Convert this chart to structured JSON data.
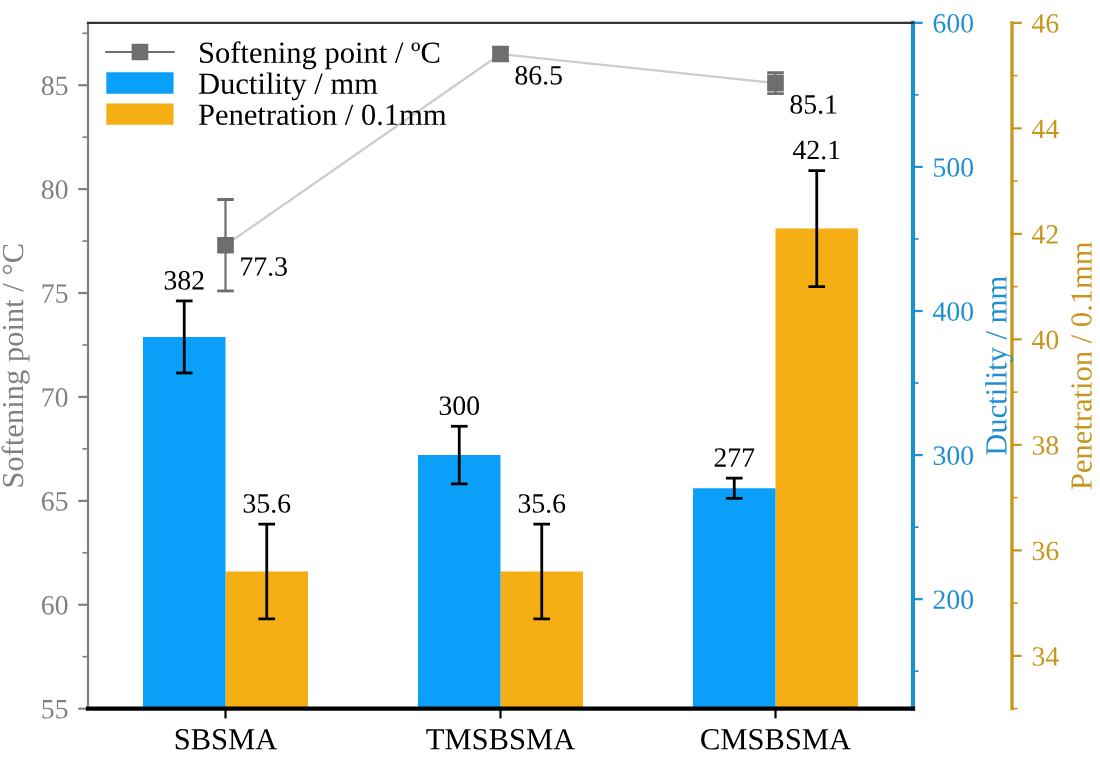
{
  "chart_data": {
    "type": "bar",
    "categories": [
      "SBSMA",
      "TMSBSMA",
      "CMSBSMA"
    ],
    "series": [
      {
        "name": "Softening point / ºC",
        "type": "line",
        "axis": "y",
        "color": "#6e6e6e",
        "values": [
          77.3,
          86.5,
          85.1
        ],
        "errors": [
          2.2,
          0.3,
          0.5
        ],
        "marker": "square"
      },
      {
        "name": "Ductility / mm",
        "axis": "y2",
        "color": "#0aa0fa",
        "values": [
          382,
          300,
          277
        ],
        "errors": [
          25,
          20,
          7
        ]
      },
      {
        "name": "Penetration / 0.1mm",
        "axis": "y3",
        "color": "#f5ae14",
        "values": [
          35.6,
          35.6,
          42.1
        ],
        "errors": [
          0.9,
          0.9,
          1.1
        ]
      }
    ],
    "ylabel": "Softening point / °C",
    "y2label": "Ductility / mm",
    "y3label": "Penetration / 0.1mm",
    "ylim": [
      55,
      88
    ],
    "yticks": [
      55,
      60,
      65,
      70,
      75,
      80,
      85
    ],
    "y2lim": [
      124,
      600
    ],
    "y2ticks": [
      200,
      300,
      400,
      500,
      600
    ],
    "y3lim": [
      33,
      46
    ],
    "y3ticks": [
      34,
      36,
      38,
      40,
      42,
      44,
      46
    ],
    "data_labels": true,
    "legend": "top left",
    "grid": false
  }
}
